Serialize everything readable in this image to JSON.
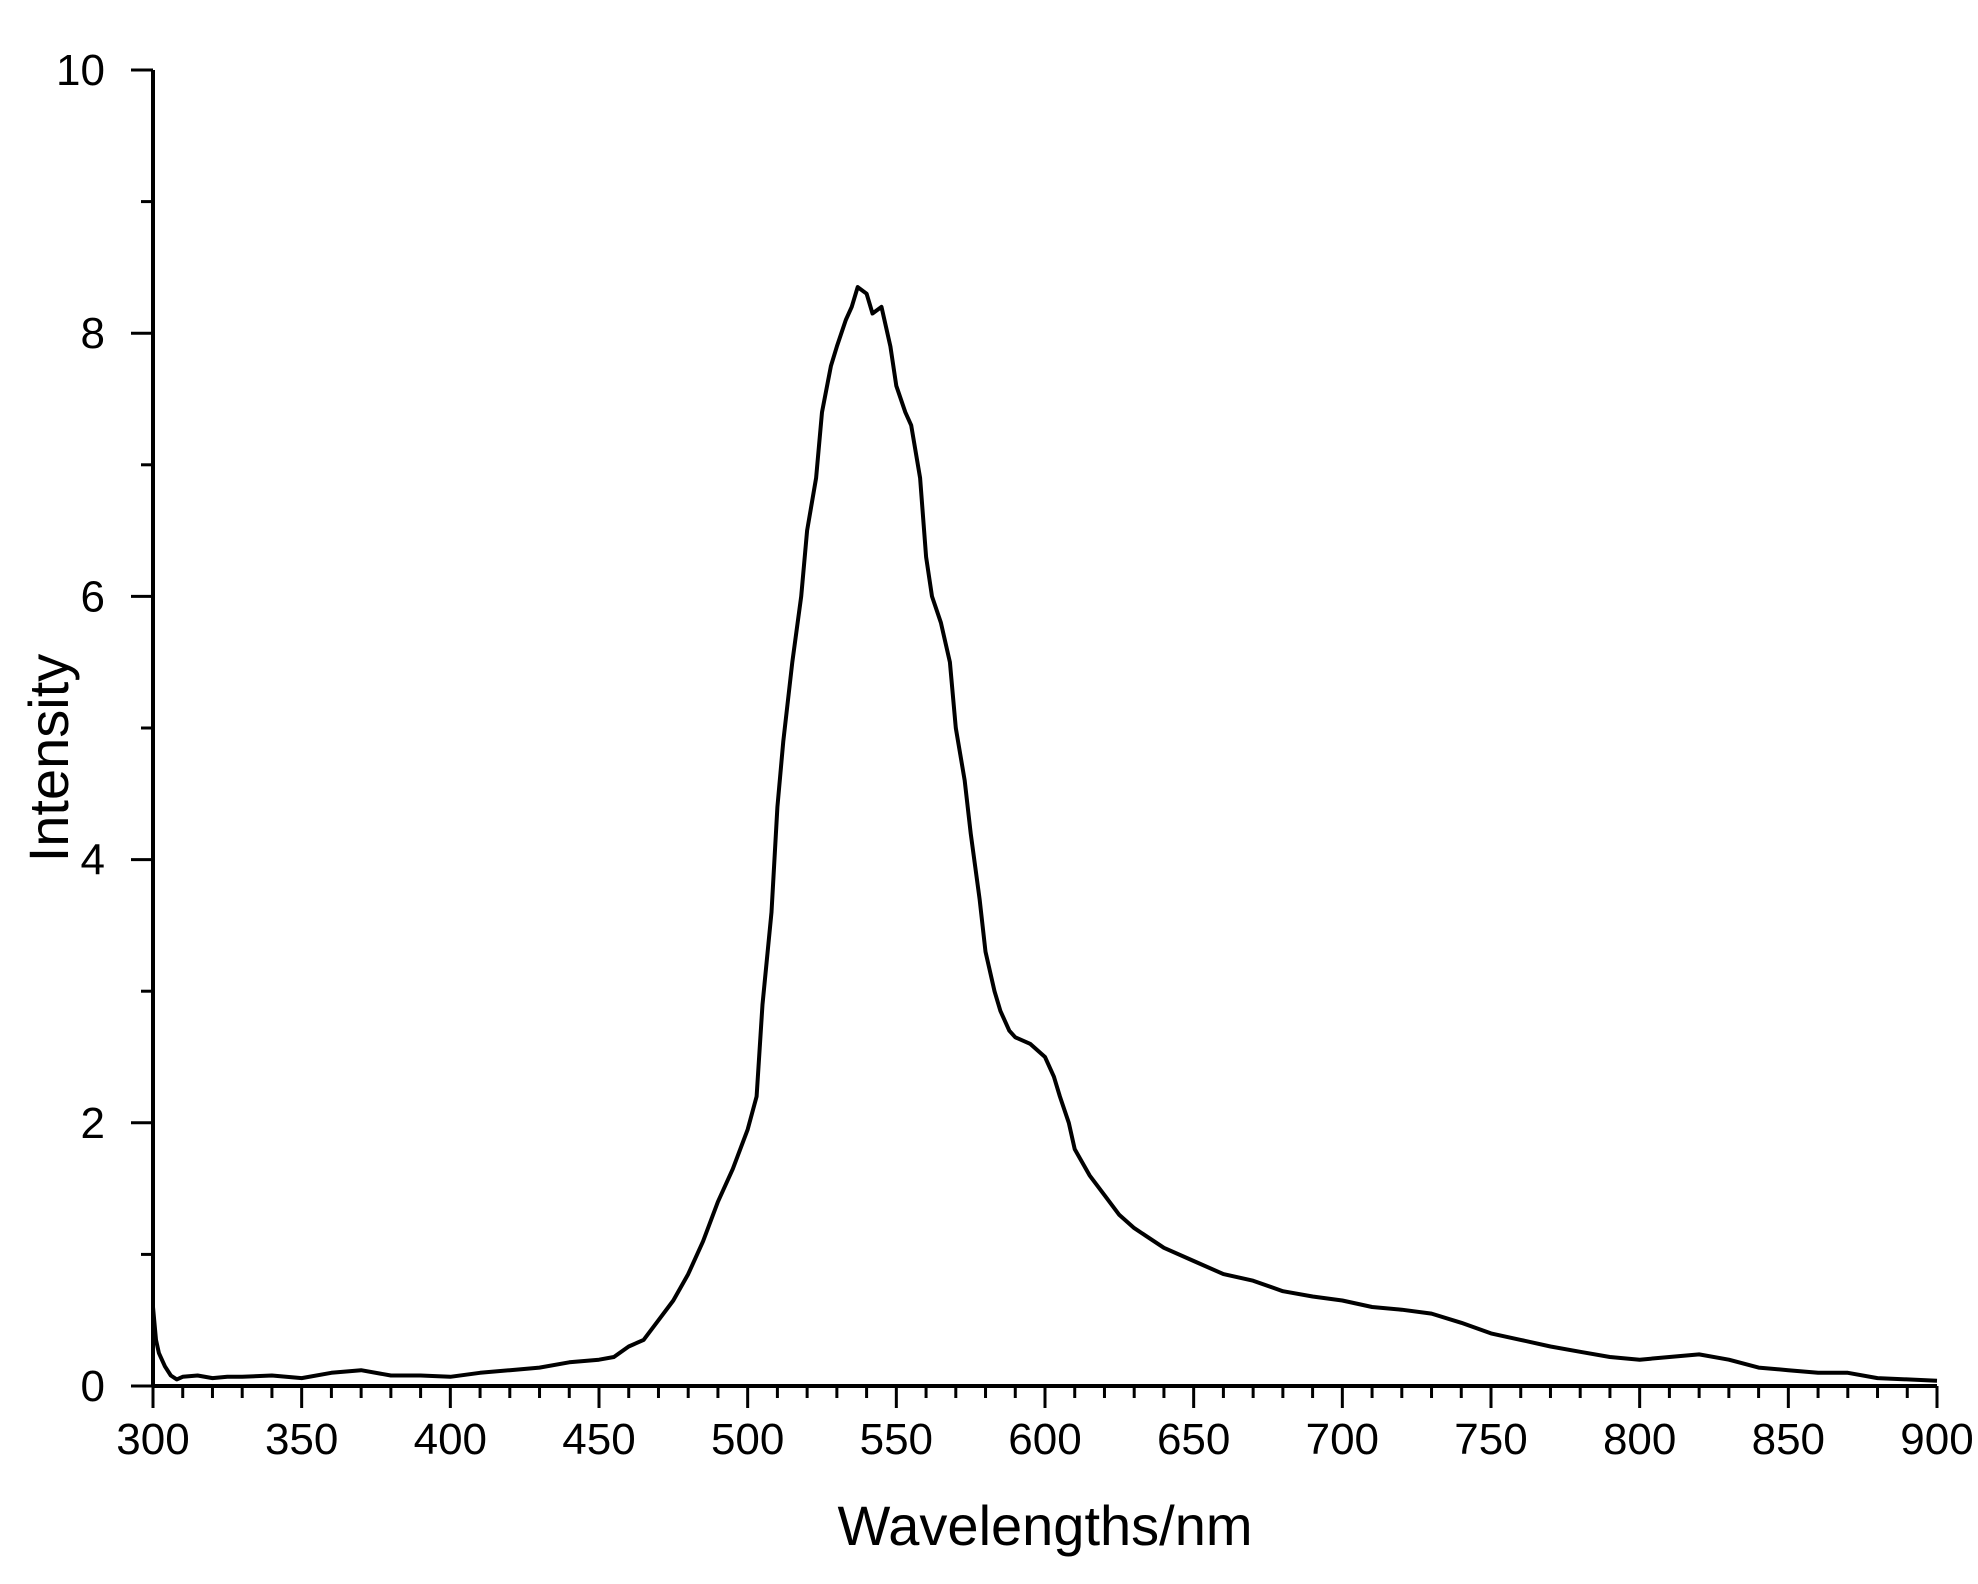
{
  "chart_data": {
    "type": "line",
    "title": "",
    "xlabel": "Wavelengths/nm",
    "ylabel": "Intensity",
    "xlim": [
      300,
      900
    ],
    "ylim": [
      0,
      10
    ],
    "x_ticks": [
      300,
      350,
      400,
      450,
      500,
      550,
      600,
      650,
      700,
      750,
      800,
      850,
      900
    ],
    "x_tick_labels": [
      "300",
      "350",
      "400",
      "450",
      "500",
      "550",
      "600",
      "650",
      "700",
      "750",
      "800",
      "850",
      "900"
    ],
    "y_ticks": [
      0,
      2,
      4,
      6,
      8,
      10
    ],
    "y_tick_labels": [
      "0",
      "2",
      "4",
      "6",
      "8",
      "10"
    ],
    "x_minor_step": 10,
    "y_minor_step": 1,
    "grid": false,
    "legend": "none",
    "line_color": "#000000",
    "series": [
      {
        "x": [
          300,
          301,
          302,
          304,
          306,
          308,
          310,
          315,
          320,
          325,
          330,
          340,
          350,
          360,
          370,
          380,
          390,
          400,
          410,
          420,
          430,
          440,
          450,
          455,
          460,
          465,
          470,
          475,
          480,
          485,
          490,
          495,
          500,
          503,
          505,
          508,
          510,
          512,
          515,
          518,
          520,
          523,
          525,
          528,
          530,
          533,
          535,
          537,
          540,
          542,
          545,
          548,
          550,
          553,
          555,
          558,
          560,
          562,
          565,
          568,
          570,
          573,
          575,
          578,
          580,
          583,
          585,
          588,
          590,
          595,
          600,
          603,
          605,
          608,
          610,
          615,
          620,
          625,
          630,
          640,
          650,
          660,
          670,
          680,
          690,
          700,
          710,
          720,
          730,
          740,
          750,
          760,
          770,
          780,
          790,
          800,
          810,
          820,
          830,
          840,
          850,
          860,
          870,
          880,
          890,
          900
        ],
        "y": [
          0.6,
          0.35,
          0.25,
          0.15,
          0.08,
          0.05,
          0.07,
          0.08,
          0.06,
          0.07,
          0.07,
          0.08,
          0.06,
          0.1,
          0.12,
          0.08,
          0.08,
          0.07,
          0.1,
          0.12,
          0.14,
          0.18,
          0.2,
          0.22,
          0.3,
          0.35,
          0.5,
          0.65,
          0.85,
          1.1,
          1.4,
          1.65,
          1.95,
          2.2,
          2.9,
          3.6,
          4.4,
          4.9,
          5.5,
          6.0,
          6.5,
          6.9,
          7.4,
          7.75,
          7.9,
          8.1,
          8.2,
          8.35,
          8.3,
          8.15,
          8.2,
          7.9,
          7.6,
          7.4,
          7.3,
          6.9,
          6.3,
          6.0,
          5.8,
          5.5,
          5.0,
          4.6,
          4.2,
          3.7,
          3.3,
          3.0,
          2.85,
          2.7,
          2.65,
          2.6,
          2.5,
          2.35,
          2.2,
          2.0,
          1.8,
          1.6,
          1.45,
          1.3,
          1.2,
          1.05,
          0.95,
          0.85,
          0.8,
          0.72,
          0.68,
          0.65,
          0.6,
          0.58,
          0.55,
          0.48,
          0.4,
          0.35,
          0.3,
          0.26,
          0.22,
          0.2,
          0.22,
          0.24,
          0.2,
          0.14,
          0.12,
          0.1,
          0.1,
          0.06,
          0.05,
          0.04
        ]
      }
    ]
  }
}
